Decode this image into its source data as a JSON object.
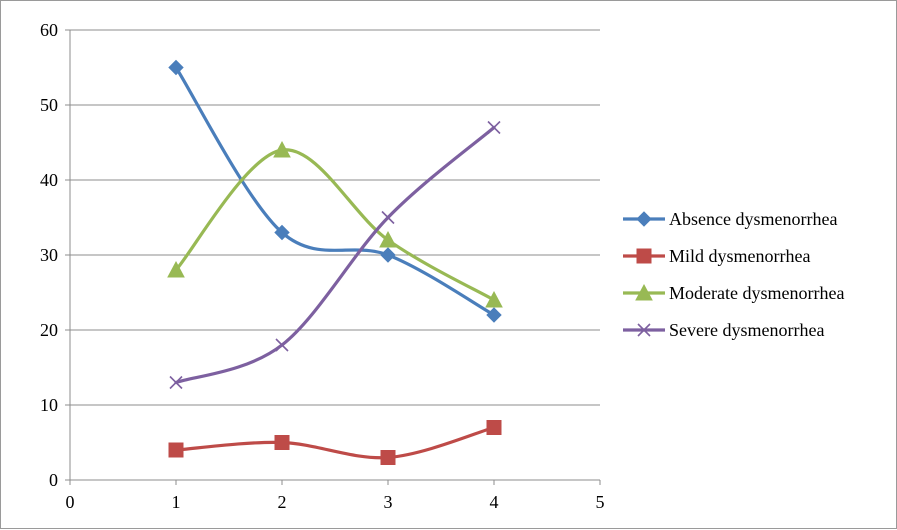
{
  "chart_data": {
    "type": "line",
    "title": "",
    "xlabel": "",
    "ylabel": "",
    "xlim": [
      0,
      5
    ],
    "ylim": [
      0,
      60
    ],
    "xticks": [
      0,
      1,
      2,
      3,
      4,
      5
    ],
    "yticks": [
      0,
      10,
      20,
      30,
      40,
      50,
      60
    ],
    "grid": "horizontal",
    "smoothed": true,
    "legend": "right",
    "x": [
      1,
      2,
      3,
      4
    ],
    "series": [
      {
        "name": "Absence dysmenorrhea",
        "values": [
          55,
          33,
          30,
          22
        ],
        "color": "#4a7ebb",
        "marker": "diamond"
      },
      {
        "name": "Mild dysmenorrhea",
        "values": [
          4,
          5,
          3,
          7
        ],
        "color": "#be4b48",
        "marker": "square"
      },
      {
        "name": "Moderate dysmenorrhea",
        "values": [
          28,
          44,
          32,
          24
        ],
        "color": "#98b954",
        "marker": "triangle"
      },
      {
        "name": "Severe dysmenorrhea",
        "values": [
          13,
          18,
          35,
          47
        ],
        "color": "#7d60a0",
        "marker": "x"
      }
    ]
  }
}
